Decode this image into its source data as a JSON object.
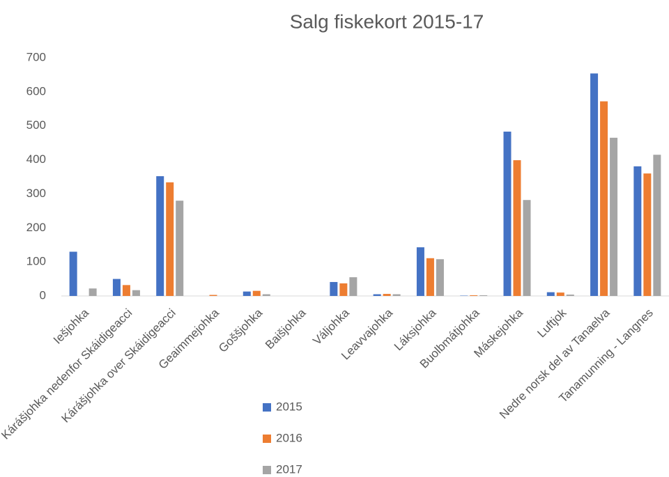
{
  "chart_data": {
    "type": "bar",
    "title": "Salg fiskekort 2015-17",
    "categories": [
      "Iešjohka",
      "Kárášjohka nedenfor Skáidigeacci",
      "Kárášjohka over Skáidigeacci",
      "Geaimmejohka",
      "Goššjohka",
      "Baišjohka",
      "Váljohka",
      "Leavvajohka",
      "Láksjohka",
      "Buolbmátjohka",
      "Máskejohka",
      "Luftjok",
      "Nedre norsk del av Tanaelva",
      "Tanamunning - Langnes"
    ],
    "series": [
      {
        "name": "2015",
        "color": "#4472c4",
        "values": [
          130,
          50,
          352,
          0,
          13,
          0,
          41,
          5,
          143,
          1,
          483,
          11,
          654,
          381
        ]
      },
      {
        "name": "2016",
        "color": "#ed7d31",
        "values": [
          0,
          32,
          334,
          3,
          15,
          0,
          37,
          6,
          111,
          2,
          399,
          10,
          572,
          360
        ]
      },
      {
        "name": "2017",
        "color": "#a5a5a5",
        "values": [
          22,
          17,
          280,
          0,
          5,
          0,
          55,
          5,
          108,
          2,
          282,
          4,
          465,
          415
        ]
      }
    ],
    "ylim": [
      0,
      700
    ],
    "yticks": [
      0,
      100,
      200,
      300,
      400,
      500,
      600,
      700
    ],
    "grid": false,
    "legend": "bottom"
  }
}
